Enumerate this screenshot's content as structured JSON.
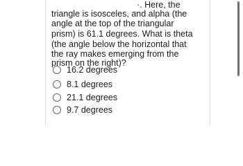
{
  "question": {
    "lines": [
      "·. Here, the",
      "triangle is isosceles, and alpha (the",
      "angle at the top of the triangular",
      "prism) is 61.1 degrees. What is theta",
      "(the angle below the horizontal that",
      "the ray makes emerging from the",
      "prism on the right)?"
    ]
  },
  "options": [
    "16.2 degrees",
    "8.1 degrees",
    "21.1 degrees",
    "9.7 degrees"
  ]
}
